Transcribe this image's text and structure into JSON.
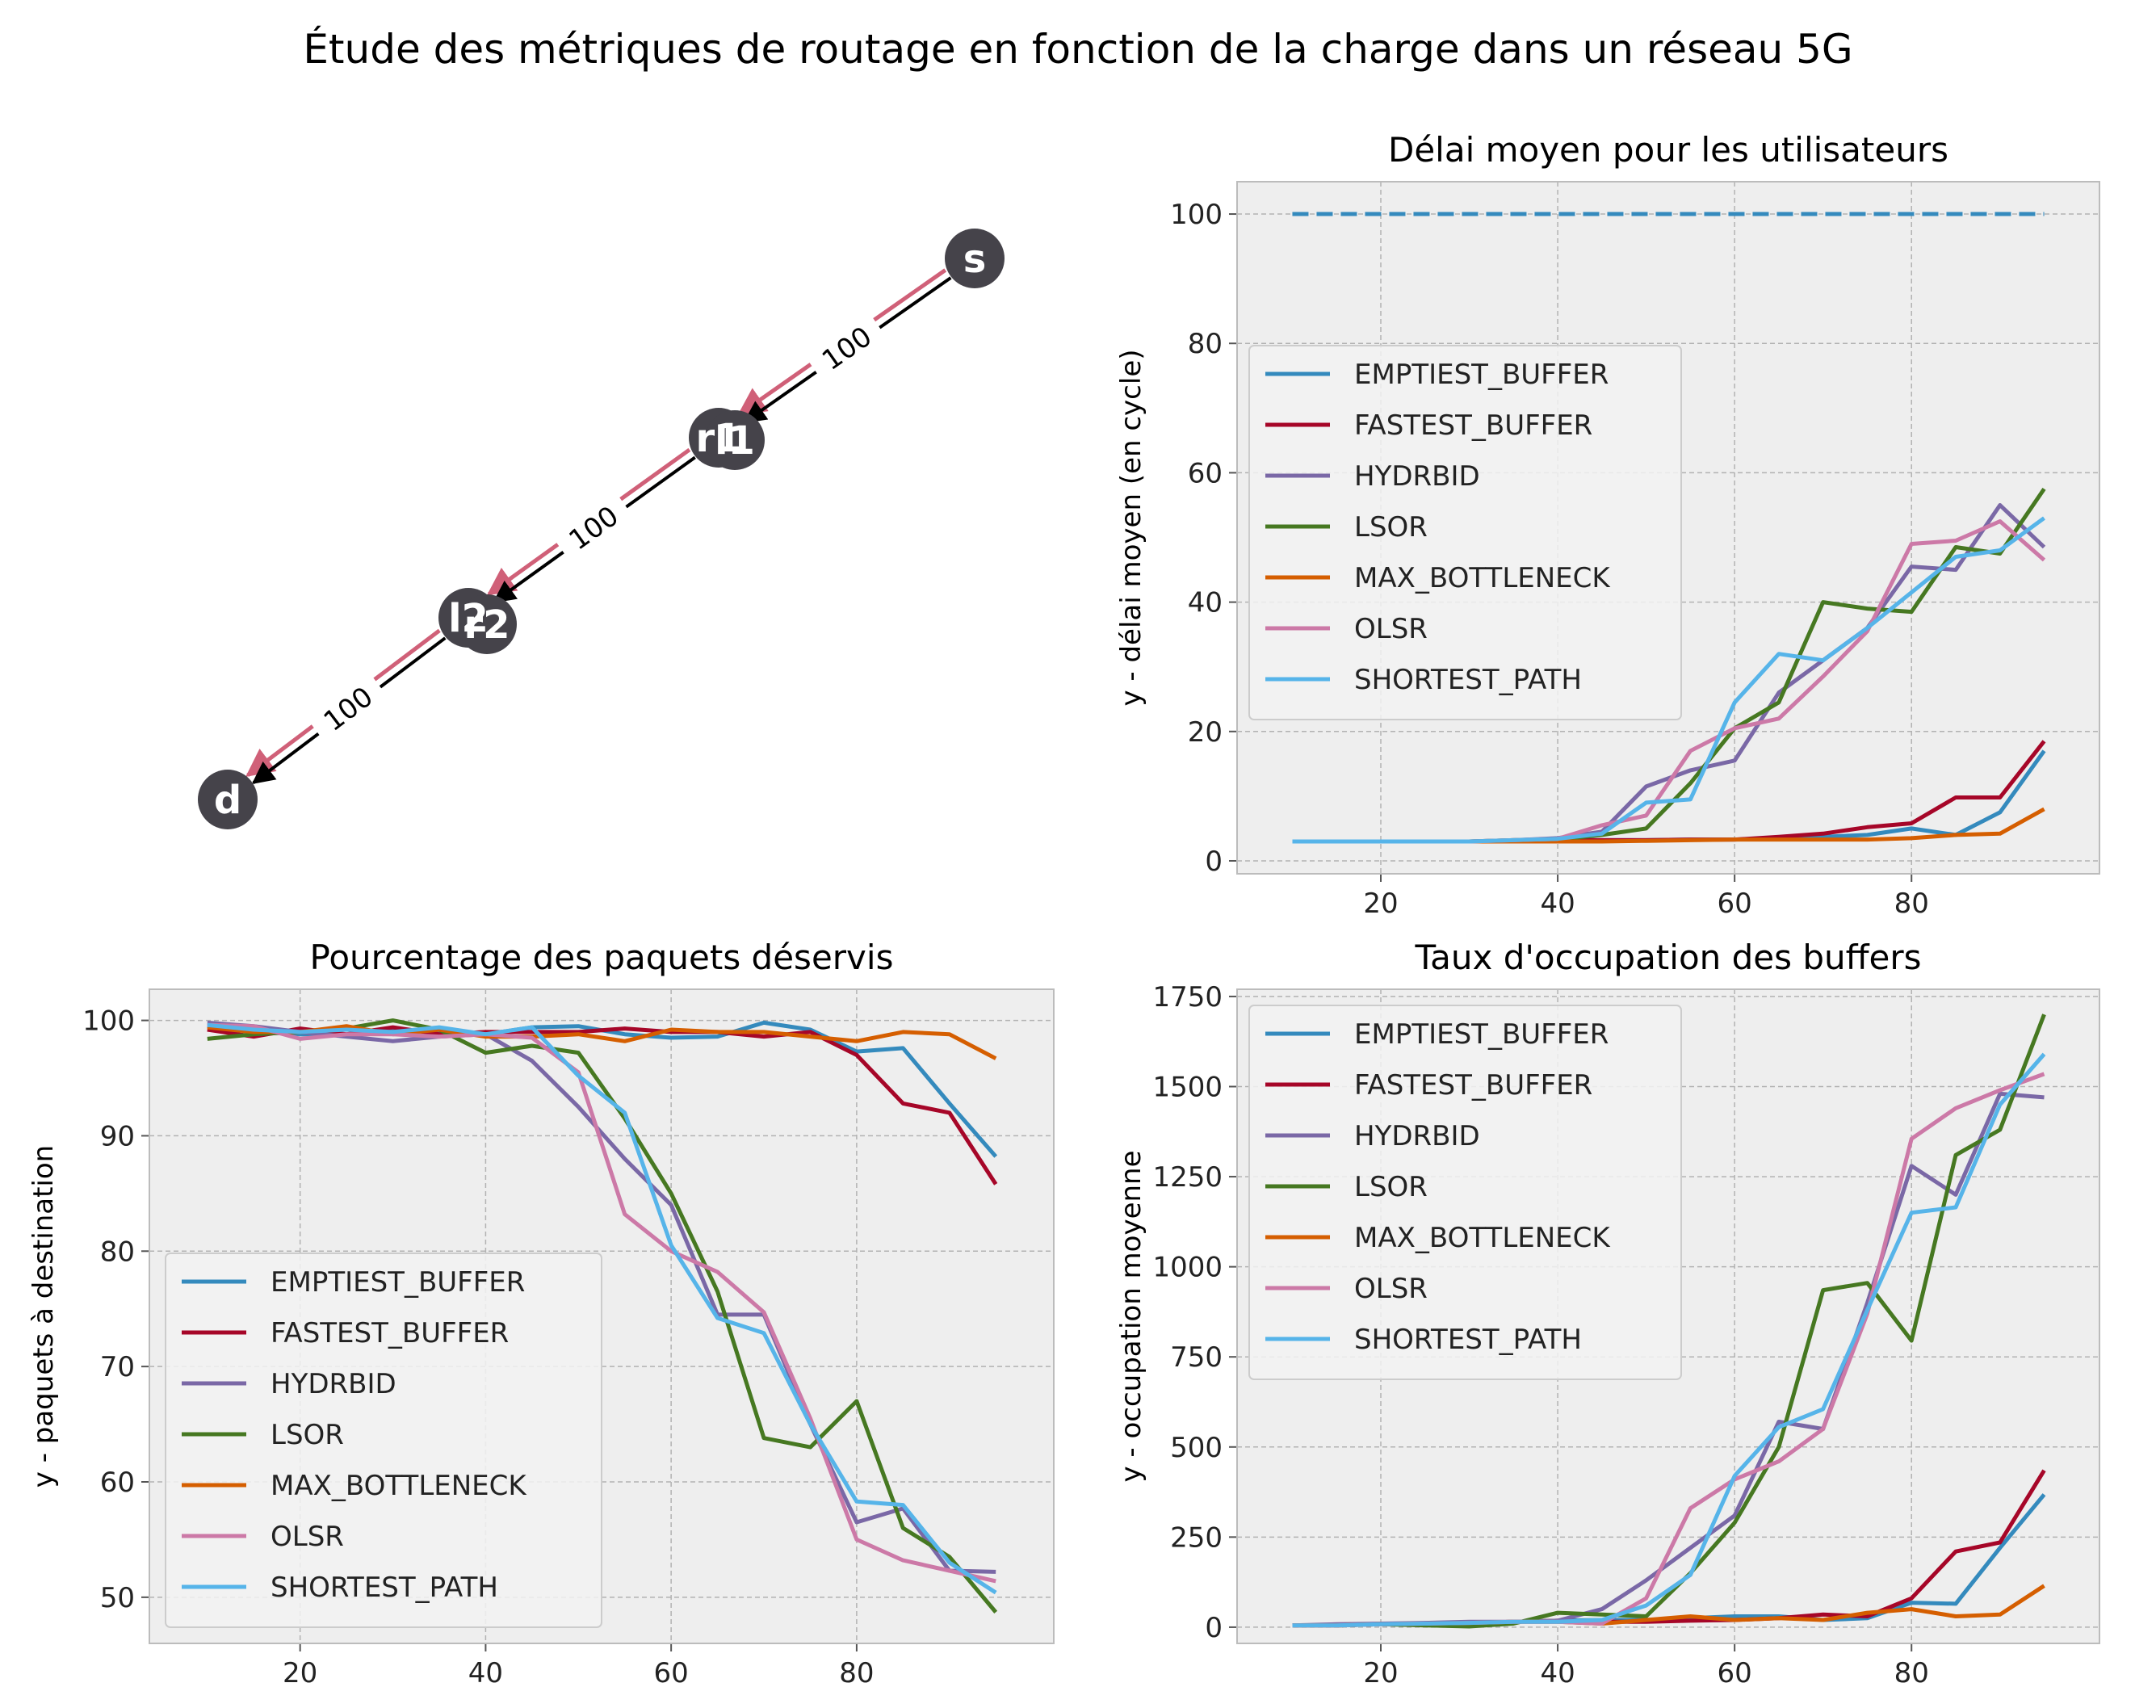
{
  "figure": {
    "suptitle": "Étude des métriques de routage en fonction de la charge dans un réseau 5G"
  },
  "colors": {
    "EMPTIEST_BUFFER": "#348ABD",
    "FASTEST_BUFFER": "#A60628",
    "HYDRBID": "#7A68A6",
    "LSOR": "#467821",
    "MAX_BOTTLENECK": "#D55E00",
    "OLSR": "#CC79A7",
    "SHORTEST_PATH": "#56B4E9",
    "axes_bg": "#EEEEEE",
    "grid": "#B2B2B2",
    "node": "#45434A",
    "edge_red": "#D06078"
  },
  "graph": {
    "nodes": [
      {
        "id": "s",
        "label": "s"
      },
      {
        "id": "r1",
        "label": "r1"
      },
      {
        "id": "l1",
        "label": "l1"
      },
      {
        "id": "l2",
        "label": "l2"
      },
      {
        "id": "r2",
        "label": "r2"
      },
      {
        "id": "d",
        "label": "d"
      }
    ],
    "edges": [
      {
        "from": "s",
        "to": "r1",
        "label": "100"
      },
      {
        "from": "r1",
        "to": "l2",
        "label": "100"
      },
      {
        "from": "l2",
        "to": "d",
        "label": "100"
      }
    ]
  },
  "chart_data": [
    {
      "id": "delay",
      "type": "line",
      "title": "Délai moyen pour les utilisateurs",
      "xlabel": "",
      "ylabel": "y - délai moyen (en cycle)",
      "xlim": [
        3.75,
        101.25
      ],
      "ylim": [
        -2,
        105
      ],
      "xticks": [
        20,
        40,
        60,
        80
      ],
      "yticks": [
        0,
        20,
        40,
        60,
        80,
        100
      ],
      "grid": true,
      "legend": "center-left",
      "x": [
        10,
        15,
        20,
        25,
        30,
        35,
        40,
        45,
        50,
        55,
        60,
        65,
        70,
        75,
        80,
        85,
        90,
        95
      ],
      "reference_line": {
        "y": 100,
        "x": [
          10,
          95
        ],
        "style": "dashed",
        "color": "#348ABD"
      },
      "series": [
        {
          "name": "EMPTIEST_BUFFER",
          "values": [
            3,
            3,
            3,
            3,
            3,
            3,
            3.2,
            3.2,
            3.2,
            3.3,
            3.3,
            3.5,
            3.7,
            4,
            5,
            4,
            7.5,
            17
          ]
        },
        {
          "name": "FASTEST_BUFFER",
          "values": [
            3,
            3,
            3,
            3,
            3,
            3,
            3.2,
            3.2,
            3.2,
            3.3,
            3.3,
            3.7,
            4.2,
            5.2,
            5.8,
            9.8,
            9.8,
            18.5
          ]
        },
        {
          "name": "HYDRBID",
          "values": [
            3,
            3,
            3,
            3,
            3,
            3.2,
            3.5,
            4.5,
            11.5,
            14,
            15.5,
            26,
            31,
            36,
            45.5,
            45,
            55,
            48.5
          ]
        },
        {
          "name": "LSOR",
          "values": [
            3,
            3,
            3,
            3,
            3,
            3.2,
            3.3,
            4,
            5,
            12,
            20.5,
            24.5,
            40,
            39,
            38.5,
            48.5,
            47.5,
            57.5
          ]
        },
        {
          "name": "MAX_BOTTLENECK",
          "values": [
            3,
            3,
            3,
            3,
            3,
            3,
            3,
            3,
            3.1,
            3.2,
            3.3,
            3.3,
            3.3,
            3.3,
            3.5,
            4,
            4.2,
            8
          ]
        },
        {
          "name": "OLSR",
          "values": [
            3,
            3,
            3,
            3,
            3,
            3.2,
            3.4,
            5.5,
            7,
            17,
            20.5,
            22,
            28.5,
            35.5,
            49,
            49.5,
            52.5,
            46.5
          ]
        },
        {
          "name": "SHORTEST_PATH",
          "values": [
            3,
            3,
            3,
            3,
            3,
            3.2,
            3.4,
            4.2,
            9,
            9.5,
            24.5,
            32,
            31,
            36,
            41.5,
            47,
            48,
            53
          ]
        }
      ]
    },
    {
      "id": "served",
      "type": "line",
      "title": "Pourcentage des paquets déservis",
      "xlabel": "",
      "ylabel": "y - paquets à destination",
      "xlim": [
        3.75,
        101.25
      ],
      "ylim": [
        46,
        102.7
      ],
      "xticks": [
        20,
        40,
        60,
        80
      ],
      "yticks": [
        50,
        60,
        70,
        80,
        90,
        100
      ],
      "grid": true,
      "legend": "lower-left",
      "x": [
        10,
        15,
        20,
        25,
        30,
        35,
        40,
        45,
        50,
        55,
        60,
        65,
        70,
        75,
        80,
        85,
        90,
        95
      ],
      "series": [
        {
          "name": "EMPTIEST_BUFFER",
          "values": [
            99.5,
            99,
            98.8,
            98.8,
            99.2,
            99,
            98.8,
            99.4,
            99.5,
            98.8,
            98.5,
            98.6,
            99.8,
            99.2,
            97.3,
            97.6,
            92.8,
            88.2
          ]
        },
        {
          "name": "FASTEST_BUFFER",
          "values": [
            99.2,
            98.6,
            99.3,
            98.8,
            99.4,
            98.8,
            99,
            99,
            99,
            99.3,
            99,
            99,
            98.6,
            99,
            97,
            92.8,
            92,
            85.8
          ]
        },
        {
          "name": "HYDRBID",
          "values": [
            99.8,
            99.5,
            99,
            98.6,
            98.2,
            98.6,
            98.8,
            96.5,
            92.5,
            88,
            84,
            74.5,
            74.5,
            65,
            56.5,
            57.7,
            52.3,
            52.2
          ]
        },
        {
          "name": "LSOR",
          "values": [
            98.4,
            98.8,
            99,
            99.3,
            100,
            99.2,
            97.2,
            97.8,
            97.2,
            91.5,
            85,
            76.5,
            63.8,
            63,
            67,
            56,
            53.5,
            48.7
          ]
        },
        {
          "name": "MAX_BOTTLENECK",
          "values": [
            99.4,
            99,
            99,
            99.5,
            98.8,
            99.2,
            98.6,
            98.6,
            98.8,
            98.2,
            99.2,
            99,
            99,
            98.6,
            98.2,
            99,
            98.8,
            96.7
          ]
        },
        {
          "name": "OLSR",
          "values": [
            99.6,
            99.5,
            98.4,
            98.8,
            98.8,
            98.6,
            98.8,
            98.5,
            95.5,
            83.2,
            80,
            78.2,
            74.7,
            65.5,
            55,
            53.2,
            52.3,
            51.4
          ]
        },
        {
          "name": "SHORTEST_PATH",
          "values": [
            99.6,
            99.2,
            99,
            99.2,
            99,
            99.4,
            98.8,
            99.4,
            95.2,
            92,
            80.5,
            74.2,
            72.9,
            65,
            58.3,
            58,
            53,
            50.4
          ]
        }
      ]
    },
    {
      "id": "buffers",
      "type": "line",
      "title": "Taux d'occupation des buffers",
      "xlabel": "",
      "ylabel": "y - occupation moyenne",
      "xlim": [
        3.75,
        101.25
      ],
      "ylim": [
        -45,
        1770
      ],
      "xticks": [
        20,
        40,
        60,
        80
      ],
      "yticks": [
        0,
        250,
        500,
        750,
        1000,
        1250,
        1500,
        1750
      ],
      "grid": true,
      "legend": "upper-left",
      "x": [
        10,
        15,
        20,
        25,
        30,
        35,
        40,
        45,
        50,
        55,
        60,
        65,
        70,
        75,
        80,
        85,
        90,
        95
      ],
      "series": [
        {
          "name": "EMPTIEST_BUFFER",
          "values": [
            5,
            5,
            8,
            10,
            12,
            15,
            18,
            20,
            20,
            25,
            30,
            30,
            20,
            25,
            68,
            65,
            220,
            368
          ]
        },
        {
          "name": "FASTEST_BUFFER",
          "values": [
            5,
            5,
            8,
            10,
            12,
            15,
            18,
            15,
            15,
            18,
            20,
            25,
            35,
            30,
            80,
            210,
            235,
            435
          ]
        },
        {
          "name": "HYDRBID",
          "values": [
            5,
            8,
            10,
            12,
            15,
            15,
            18,
            50,
            130,
            220,
            310,
            570,
            550,
            900,
            1280,
            1200,
            1480,
            1470
          ]
        },
        {
          "name": "LSOR",
          "values": [
            5,
            5,
            8,
            5,
            2,
            10,
            40,
            35,
            30,
            150,
            290,
            500,
            935,
            955,
            795,
            1310,
            1380,
            1700
          ]
        },
        {
          "name": "MAX_BOTTLENECK",
          "values": [
            5,
            5,
            8,
            10,
            12,
            15,
            15,
            10,
            20,
            30,
            20,
            25,
            20,
            40,
            50,
            30,
            35,
            115
          ]
        },
        {
          "name": "OLSR",
          "values": [
            5,
            5,
            8,
            10,
            12,
            15,
            15,
            10,
            80,
            330,
            410,
            460,
            550,
            870,
            1355,
            1440,
            1490,
            1535
          ]
        },
        {
          "name": "SHORTEST_PATH",
          "values": [
            5,
            5,
            8,
            10,
            12,
            15,
            15,
            20,
            60,
            145,
            420,
            555,
            605,
            880,
            1150,
            1165,
            1450,
            1590
          ]
        }
      ]
    }
  ]
}
